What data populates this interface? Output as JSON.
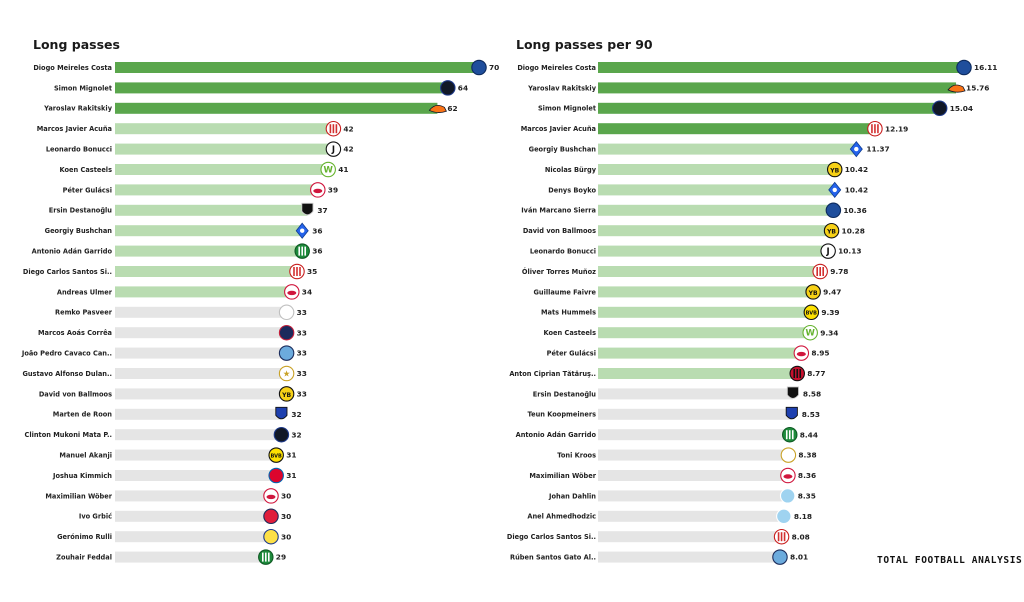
{
  "brand": "TOTAL FOOTBALL ANALYSIS",
  "colors": {
    "dark": "#5aa64c",
    "mid": "#b9dcb1",
    "light": "#e5e5e5"
  },
  "chart_data": [
    {
      "type": "bar",
      "orientation": "horizontal",
      "title": "Long passes",
      "xlabel": "",
      "ylabel": "",
      "xlim": [
        0,
        70
      ],
      "grid": false,
      "categories": [
        "Diogo Meireles Costa",
        "Simon Mignolet",
        "Yaroslav Rakitskiy",
        "Marcos Javier Acuña",
        "Leonardo Bonucci",
        "Koen Casteels",
        "Péter Gulácsi",
        "Ersin Destanoğlu",
        "Georgiy Bushchan",
        "Antonio Adán Garrido",
        "Diego Carlos Santos Si..",
        "Andreas Ulmer",
        "Remko Pasveer",
        "Marcos  Aoás Corrêa",
        "João Pedro Cavaco Can..",
        "Gustavo Alfonso Dulan..",
        "David von Ballmoos",
        "Marten de Roon",
        "Clinton Mukoni Mata P..",
        "Manuel Akanji",
        "Joshua Kimmich",
        "Maximilian Wöber",
        "Ivo Grbić",
        "Gerónimo Rulli",
        "Zouhair Feddal"
      ],
      "values": [
        70,
        64,
        62,
        42,
        42,
        41,
        39,
        37,
        36,
        36,
        35,
        34,
        33,
        33,
        33,
        33,
        33,
        32,
        32,
        31,
        31,
        30,
        30,
        30,
        29
      ],
      "value_labels": [
        "70",
        "64",
        "62",
        "42",
        "42",
        "41",
        "39",
        "37",
        "36",
        "36",
        "35",
        "34",
        "33",
        "33",
        "33",
        "33",
        "33",
        "32",
        "32",
        "31",
        "31",
        "30",
        "30",
        "30",
        "29"
      ],
      "bar_tier": [
        "dark",
        "dark",
        "dark",
        "mid",
        "mid",
        "mid",
        "mid",
        "mid",
        "mid",
        "mid",
        "mid",
        "mid",
        "light",
        "light",
        "light",
        "light",
        "light",
        "light",
        "light",
        "light",
        "light",
        "light",
        "light",
        "light",
        "light"
      ],
      "badges": [
        "porto",
        "brugge",
        "shakhtar",
        "sevilla",
        "juventus",
        "wolfsburg",
        "leipzig",
        "besiktas",
        "dynamo",
        "sporting",
        "sevilla",
        "salzburg",
        "ajax",
        "psg",
        "mancity",
        "sheriff",
        "youngboys",
        "atalanta",
        "brugge",
        "dortmund",
        "bayern",
        "salzburg",
        "lille",
        "villarreal",
        "sporting"
      ]
    },
    {
      "type": "bar",
      "orientation": "horizontal",
      "title": "Long passes per 90",
      "xlabel": "",
      "ylabel": "",
      "xlim": [
        0,
        16.11
      ],
      "grid": false,
      "categories": [
        "Diogo Meireles Costa",
        "Yaroslav Rakitskiy",
        "Simon Mignolet",
        "Marcos Javier Acuña",
        "Georgiy Bushchan",
        "Nicolas Bürgy",
        "Denys Boyko",
        "Iván Marcano Sierra",
        "David von Ballmoos",
        "Leonardo Bonucci",
        "Óliver Torres Muñoz",
        "Guillaume Faivre",
        "Mats  Hummels",
        "Koen Casteels",
        "Péter Gulácsi",
        "Anton Ciprian Tătăruş..",
        "Ersin Destanoğlu",
        "Teun Koopmeiners",
        "Antonio Adán Garrido",
        "Toni Kroos",
        "Maximilian Wöber",
        "Johan Dahlin",
        "Anel Ahmedhodzic",
        "Diego Carlos Santos Si..",
        "Rúben  Santos Gato Al.."
      ],
      "values": [
        16.11,
        15.76,
        15.04,
        12.19,
        11.37,
        10.42,
        10.42,
        10.36,
        10.28,
        10.13,
        9.78,
        9.47,
        9.39,
        9.34,
        8.95,
        8.77,
        8.58,
        8.53,
        8.44,
        8.38,
        8.36,
        8.35,
        8.18,
        8.08,
        8.01
      ],
      "value_labels": [
        "16.11",
        "15.76",
        "15.04",
        "12.19",
        "11.37",
        "10.42",
        "10.42",
        "10.36",
        "10.28",
        "10.13",
        "9.78",
        "9.47",
        "9.39",
        "9.34",
        "8.95",
        "8.77",
        "8.58",
        "8.53",
        "8.44",
        "8.38",
        "8.36",
        "8.35",
        "8.18",
        "8.08",
        "8.01"
      ],
      "bar_tier": [
        "dark",
        "dark",
        "dark",
        "dark",
        "mid",
        "mid",
        "mid",
        "mid",
        "mid",
        "mid",
        "mid",
        "mid",
        "mid",
        "mid",
        "mid",
        "mid",
        "light",
        "light",
        "light",
        "light",
        "light",
        "light",
        "light",
        "light",
        "light"
      ],
      "badges": [
        "porto",
        "shakhtar",
        "brugge",
        "sevilla",
        "dynamo",
        "youngboys",
        "dynamo",
        "porto",
        "youngboys",
        "juventus",
        "sevilla",
        "youngboys",
        "dortmund",
        "wolfsburg",
        "leipzig",
        "milan",
        "besiktas",
        "atalanta",
        "sporting",
        "realmadrid",
        "salzburg",
        "malmo",
        "malmo",
        "sevilla",
        "mancity"
      ]
    }
  ]
}
